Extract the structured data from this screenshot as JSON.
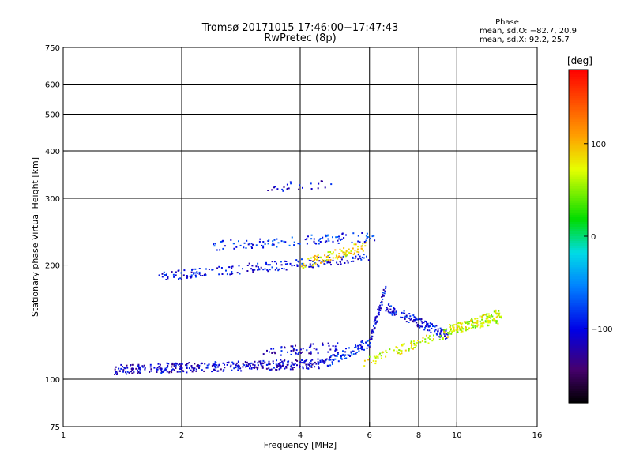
{
  "chart_data": {
    "type": "scatter",
    "title": "Tromsø 20171015 17:46:00−17:47:43",
    "subtitle": "RwPretec (8p)",
    "xlabel": "Frequency [MHz]",
    "ylabel": "Stationary phase Virtual Height [km]",
    "x_scale": "log",
    "y_scale": "log",
    "xlim": [
      1,
      16
    ],
    "ylim": [
      75,
      750
    ],
    "x_ticks": [
      1,
      2,
      4,
      6,
      8,
      10,
      16
    ],
    "x_tick_labels": [
      "1",
      "2",
      "4",
      "6",
      "8",
      "10",
      "16"
    ],
    "y_ticks": [
      75,
      100,
      200,
      300,
      400,
      500,
      600,
      750
    ],
    "y_tick_labels": [
      "75",
      "100",
      "200",
      "300",
      "400",
      "500",
      "600",
      "750"
    ],
    "grid": true,
    "phase_panel": {
      "title": "Phase",
      "line_o": "mean, sd,O: −82.7, 20.9",
      "line_x": "mean, sd,X:  92.2, 25.7"
    },
    "colorbar": {
      "unit_label": "[deg]",
      "range": [
        -180,
        180
      ],
      "ticks": [
        100,
        0,
        -100
      ],
      "tick_labels": [
        "100",
        "0",
        "−100"
      ]
    },
    "traces": [
      {
        "x_range": [
          1.35,
          4.6
        ],
        "y_at_start": 106,
        "y_at_end": 110,
        "phase_mean": -110,
        "count": 380
      },
      {
        "x_range": [
          4.6,
          6.0
        ],
        "y_at_start": 110,
        "y_at_end": 125,
        "phase_mean": -90,
        "count": 90
      },
      {
        "x_range": [
          6.0,
          6.6
        ],
        "y_at_start": 125,
        "y_at_end": 175,
        "phase_mean": -105,
        "count": 60
      },
      {
        "x_range": [
          6.6,
          9.5
        ],
        "y_at_start": 155,
        "y_at_end": 130,
        "phase_mean": -100,
        "count": 130
      },
      {
        "x_range": [
          9.5,
          13.0
        ],
        "y_at_start": 135,
        "y_at_end": 145,
        "phase_mean": 60,
        "count": 90
      },
      {
        "x_range": [
          5.8,
          13.0
        ],
        "y_at_start": 110,
        "y_at_end": 150,
        "phase_mean": 70,
        "count": 160
      },
      {
        "x_range": [
          3.2,
          5.0
        ],
        "y_at_start": 117,
        "y_at_end": 122,
        "phase_mean": -110,
        "count": 60
      },
      {
        "x_range": [
          1.75,
          6.0
        ],
        "y_at_start": 186,
        "y_at_end": 210,
        "phase_mean": -100,
        "count": 190
      },
      {
        "x_range": [
          4.0,
          5.9
        ],
        "y_at_start": 200,
        "y_at_end": 225,
        "phase_mean": 85,
        "count": 90
      },
      {
        "x_range": [
          2.4,
          6.2
        ],
        "y_at_start": 225,
        "y_at_end": 238,
        "phase_mean": -85,
        "count": 110
      },
      {
        "x_range": [
          3.3,
          4.8
        ],
        "y_at_start": 320,
        "y_at_end": 330,
        "phase_mean": -110,
        "count": 25
      }
    ]
  }
}
